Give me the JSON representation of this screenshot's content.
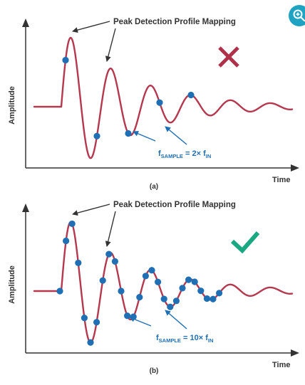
{
  "colors": {
    "waveform": "#b5384e",
    "sample_dot": "#1f6fb5",
    "annotation": "#1f6fb5",
    "cross": "#b0304a",
    "check": "#1aa882",
    "axis": "#333333",
    "zoom": "#1ea3c2"
  },
  "icons": {
    "zoom": "magnifier-plus-icon",
    "fail": "cross-icon",
    "pass": "checkmark-icon"
  },
  "panel_a": {
    "peak_label": "Peak Detection Profile Mapping",
    "ylabel": "Amplitude",
    "xlabel": "Time",
    "caption": "(a)",
    "formula": {
      "f": "f",
      "sample_sub": "SAMPLE",
      "mid": " = 2× f",
      "in_sub": "IN"
    },
    "sample_count": 5
  },
  "panel_b": {
    "peak_label": "Peak Detection Profile Mapping",
    "ylabel": "Amplitude",
    "xlabel": "Time",
    "caption": "(b)",
    "formula": {
      "f": "f",
      "sample_sub": "SAMPLE",
      "mid": " = 10× f",
      "in_sub": "IN"
    },
    "sample_count": 27
  }
}
